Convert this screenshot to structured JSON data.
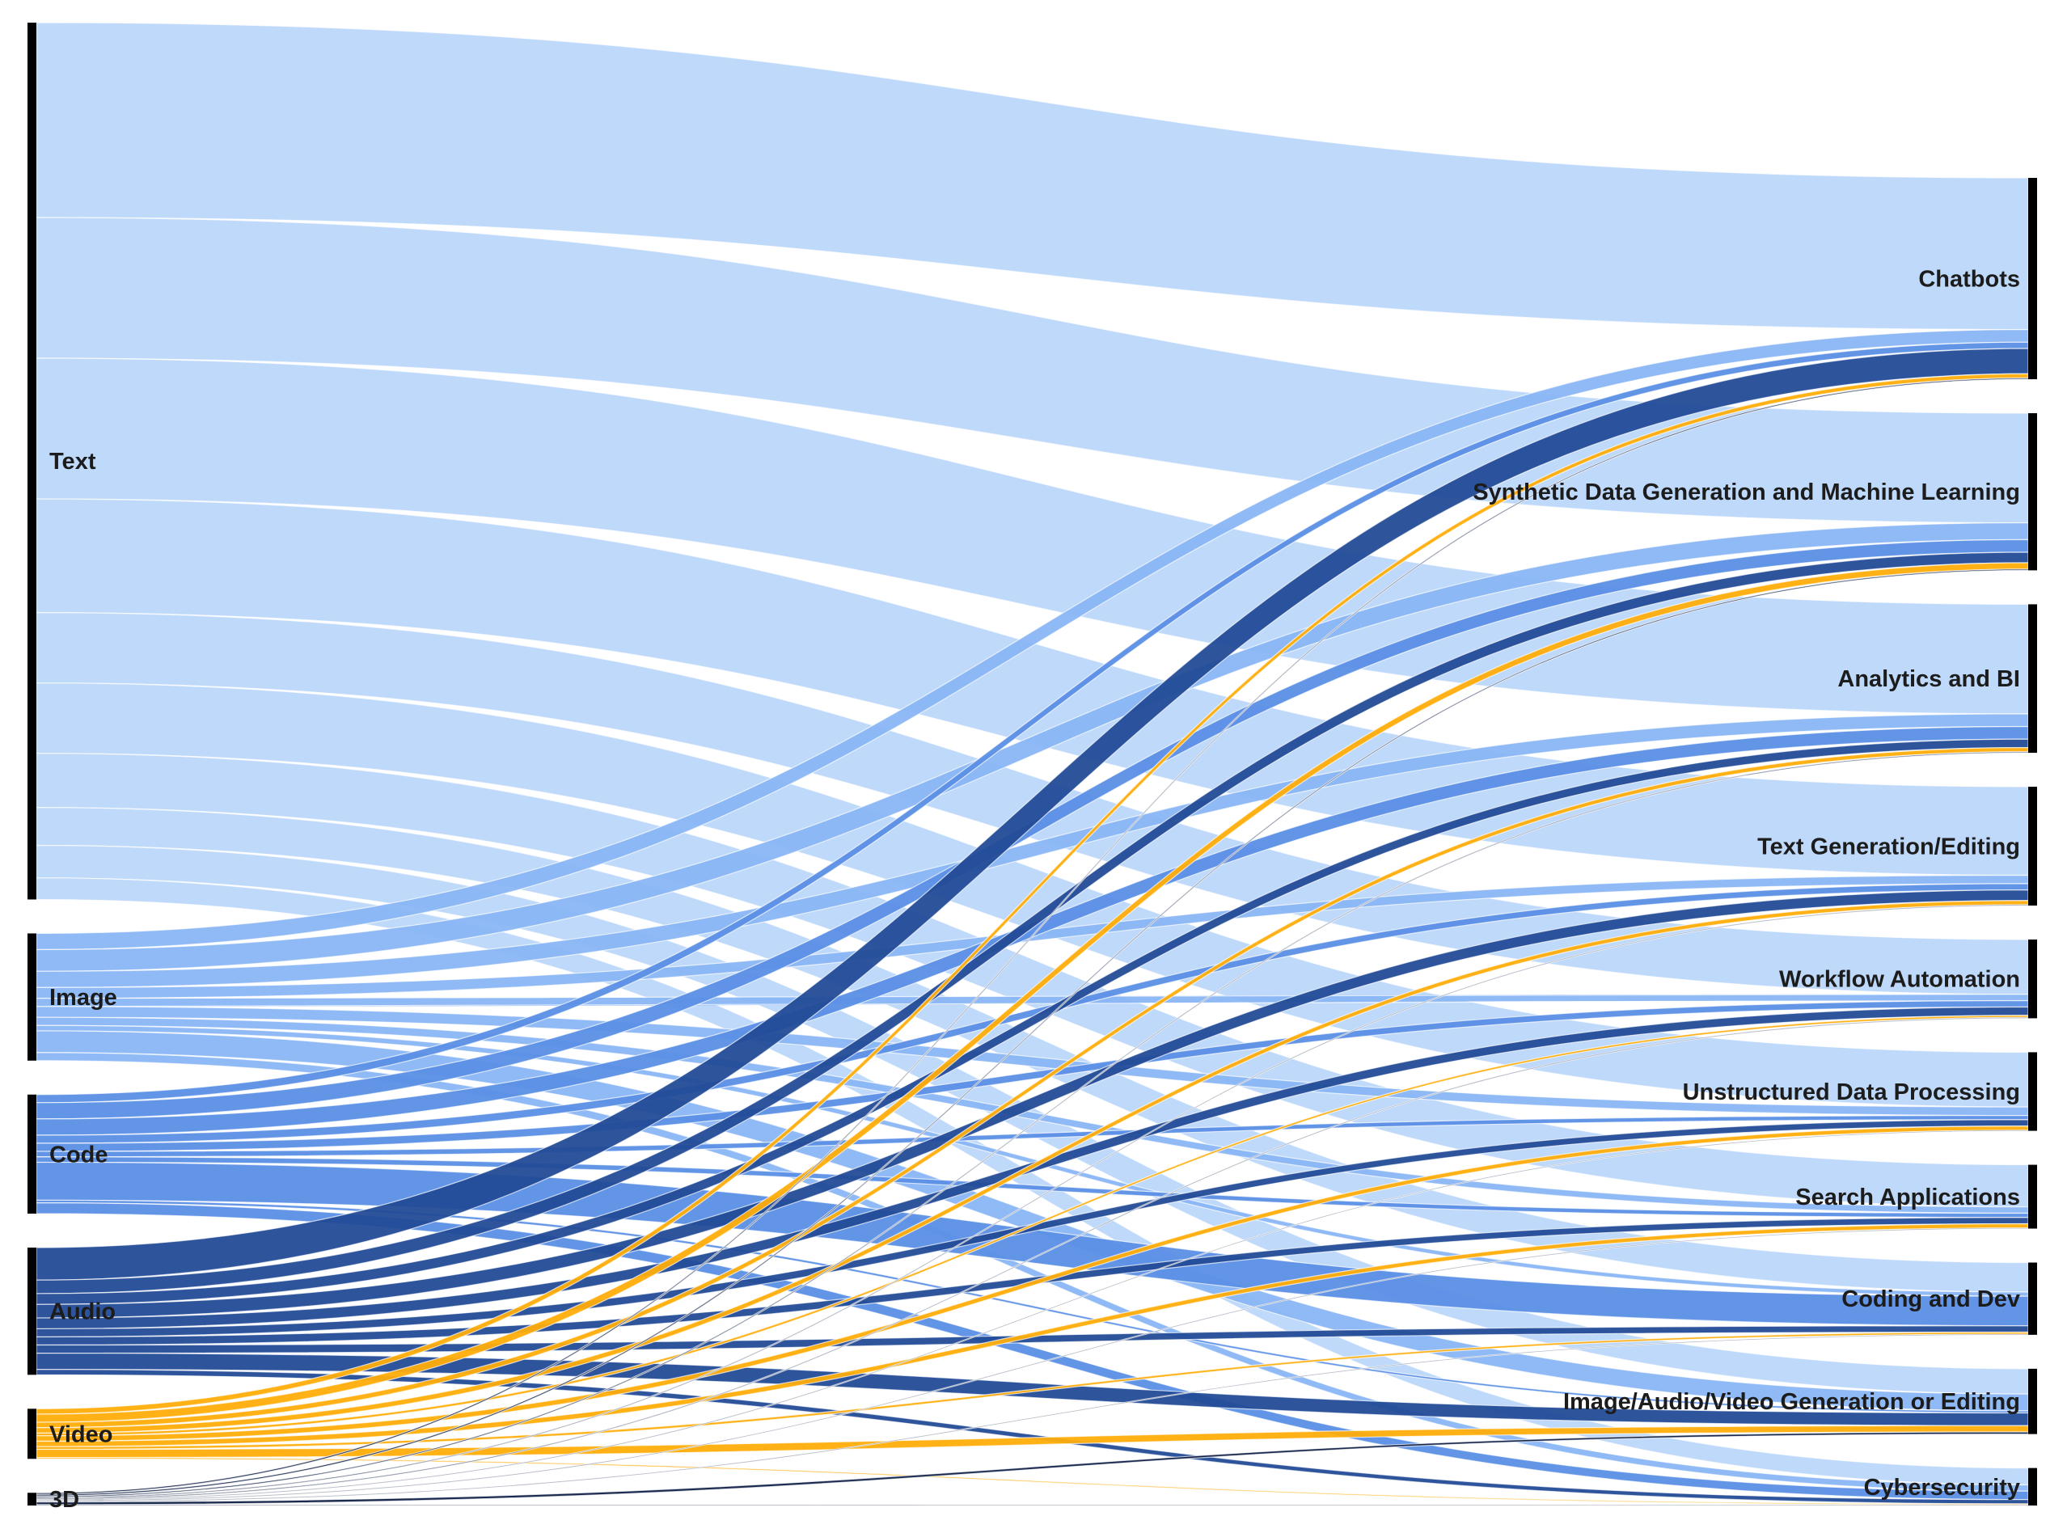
{
  "chart_data": {
    "type": "sankey",
    "title": "",
    "sources": [
      {
        "name": "Text",
        "color": "#bcd7fa"
      },
      {
        "name": "Image",
        "color": "#8ab6f5"
      },
      {
        "name": "Code",
        "color": "#5b8fe6"
      },
      {
        "name": "Audio",
        "color": "#234b97"
      },
      {
        "name": "Video",
        "color": "#ffad0a"
      },
      {
        "name": "3D",
        "color": "#0e1f45"
      }
    ],
    "targets": [
      "Chatbots",
      "Synthetic Data Generation and Machine Learning",
      "Analytics and BI",
      "Text Generation/Editing",
      "Workflow Automation",
      "Unstructured Data Processing",
      "Search Applications",
      "Coding and Dev",
      "Image/Audio/Video Generation or Editing",
      "Cybersecurity"
    ],
    "flows": {
      "Text": [
        72,
        52,
        52,
        42,
        26,
        26,
        20,
        14,
        12,
        8
      ],
      "Image": [
        6,
        8,
        6,
        4,
        3,
        4,
        3,
        2,
        8,
        3
      ],
      "Code": [
        3,
        6,
        6,
        3,
        3,
        2,
        2,
        14,
        1,
        4
      ],
      "Audio": [
        12,
        5,
        4,
        5,
        4,
        3,
        3,
        3,
        6,
        2
      ],
      "Video": [
        2,
        3,
        2,
        2,
        1,
        2,
        2,
        1,
        3,
        0.5
      ],
      "3D": [
        0.6,
        0.6,
        0.5,
        0.4,
        0.4,
        0.3,
        0.3,
        0.3,
        1,
        0.3
      ]
    },
    "link_opacity": 0.95,
    "grid": false,
    "legend": "none"
  }
}
